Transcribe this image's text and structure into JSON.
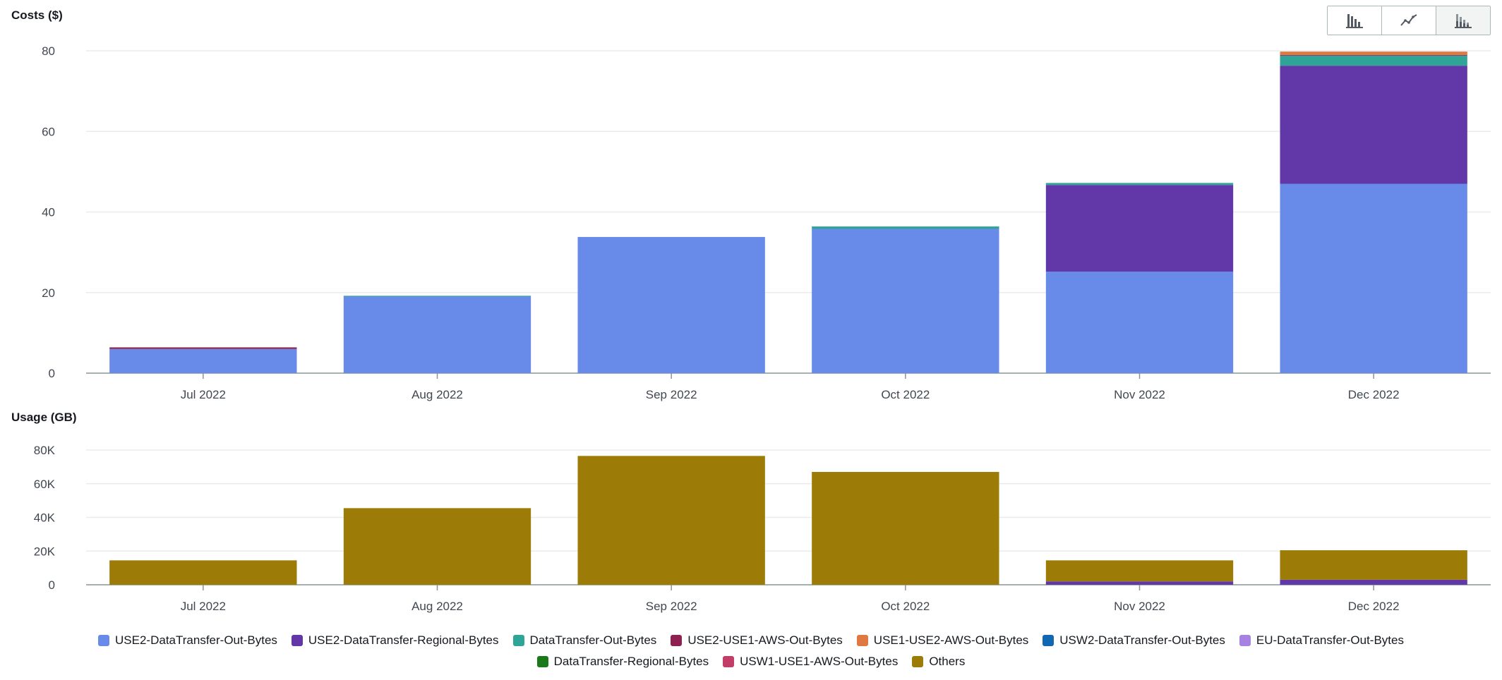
{
  "toggle": {
    "buttons": [
      {
        "icon": "bar-chart-icon",
        "active": false
      },
      {
        "icon": "line-chart-icon",
        "active": false
      },
      {
        "icon": "stacked-bar-chart-icon",
        "active": true
      }
    ]
  },
  "chart_data": [
    {
      "type": "bar",
      "stacked": true,
      "title": "Costs ($)",
      "ylabel": "Costs ($)",
      "categories": [
        "Jul 2022",
        "Aug 2022",
        "Sep 2022",
        "Oct 2022",
        "Nov 2022",
        "Dec 2022"
      ],
      "ylim": [
        0,
        80
      ],
      "yticks": [
        0,
        20,
        40,
        60,
        80
      ],
      "ytick_labels": [
        "0",
        "20",
        "40",
        "60",
        "80"
      ],
      "grid": true,
      "series": [
        {
          "name": "USE2-DataTransfer-Out-Bytes",
          "color": "#688ae8",
          "values": [
            6,
            19,
            33.8,
            35.8,
            25.2,
            47
          ]
        },
        {
          "name": "USE2-DataTransfer-Regional-Bytes",
          "color": "#6237a7",
          "values": [
            0,
            0,
            0,
            0,
            21.5,
            29.3
          ]
        },
        {
          "name": "DataTransfer-Out-Bytes",
          "color": "#2ea597",
          "values": [
            0,
            0.2,
            0,
            0.6,
            0.5,
            2.5
          ]
        },
        {
          "name": "USE2-USE1-AWS-Out-Bytes",
          "color": "#8d2150",
          "values": [
            0.4,
            0,
            0,
            0,
            0,
            0.2
          ]
        },
        {
          "name": "USE1-USE2-AWS-Out-Bytes",
          "color": "#e07941",
          "values": [
            0,
            0,
            0,
            0,
            0,
            0.8
          ]
        },
        {
          "name": "USW2-DataTransfer-Out-Bytes",
          "color": "#1167b1",
          "values": [
            0,
            0,
            0,
            0,
            0,
            0
          ]
        },
        {
          "name": "EU-DataTransfer-Out-Bytes",
          "color": "#a783e1",
          "values": [
            0,
            0,
            0,
            0,
            0,
            0
          ]
        },
        {
          "name": "DataTransfer-Regional-Bytes",
          "color": "#1a7a1a",
          "values": [
            0,
            0,
            0,
            0,
            0,
            0
          ]
        },
        {
          "name": "USW1-USE1-AWS-Out-Bytes",
          "color": "#c33d69",
          "values": [
            0,
            0,
            0,
            0,
            0,
            0
          ]
        },
        {
          "name": "Others",
          "color": "#9c7b06",
          "values": [
            0,
            0,
            0,
            0,
            0,
            0
          ]
        }
      ]
    },
    {
      "type": "bar",
      "stacked": true,
      "title": "Usage (GB)",
      "ylabel": "Usage (GB)",
      "categories": [
        "Jul 2022",
        "Aug 2022",
        "Sep 2022",
        "Oct 2022",
        "Nov 2022",
        "Dec 2022"
      ],
      "ylim": [
        0,
        80000
      ],
      "yticks": [
        0,
        20000,
        40000,
        60000,
        80000
      ],
      "ytick_labels": [
        "0",
        "20K",
        "40K",
        "60K",
        "80K"
      ],
      "grid": true,
      "series": [
        {
          "name": "USE2-DataTransfer-Out-Bytes",
          "color": "#688ae8",
          "values": [
            0,
            0,
            0,
            0,
            0,
            0
          ]
        },
        {
          "name": "USE2-DataTransfer-Regional-Bytes",
          "color": "#6237a7",
          "values": [
            0,
            0,
            0,
            0,
            2000,
            3000
          ]
        },
        {
          "name": "Others",
          "color": "#9c7b06",
          "values": [
            14500,
            45500,
            76500,
            67000,
            12500,
            17500
          ]
        }
      ]
    }
  ],
  "legend": {
    "placement": "bottom-center",
    "rows": [
      [
        {
          "name": "USE2-DataTransfer-Out-Bytes",
          "color": "#688ae8"
        },
        {
          "name": "USE2-DataTransfer-Regional-Bytes",
          "color": "#6237a7"
        },
        {
          "name": "DataTransfer-Out-Bytes",
          "color": "#2ea597"
        },
        {
          "name": "USE2-USE1-AWS-Out-Bytes",
          "color": "#8d2150"
        },
        {
          "name": "USE1-USE2-AWS-Out-Bytes",
          "color": "#e07941"
        },
        {
          "name": "USW2-DataTransfer-Out-Bytes",
          "color": "#1167b1"
        },
        {
          "name": "EU-DataTransfer-Out-Bytes",
          "color": "#a783e1"
        }
      ],
      [
        {
          "name": "DataTransfer-Regional-Bytes",
          "color": "#1a7a1a"
        },
        {
          "name": "USW1-USE1-AWS-Out-Bytes",
          "color": "#c33d69"
        },
        {
          "name": "Others",
          "color": "#9c7b06"
        }
      ]
    ]
  }
}
